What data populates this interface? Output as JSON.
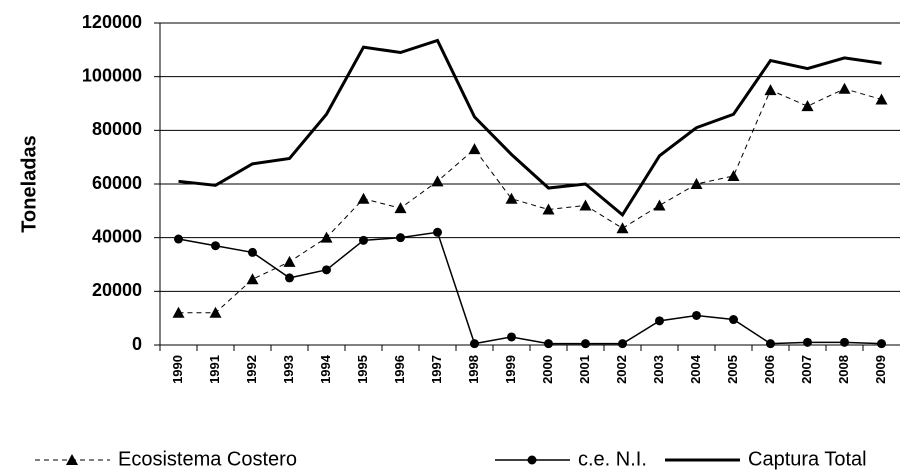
{
  "chart_data": {
    "type": "line",
    "y_label": "Toneladas",
    "categories": [
      "1990",
      "1991",
      "1992",
      "1993",
      "1994",
      "1995",
      "1996",
      "1997",
      "1998",
      "1999",
      "2000",
      "2001",
      "2002",
      "2003",
      "2004",
      "2005",
      "2006",
      "2007",
      "2008",
      "2009"
    ],
    "series": [
      {
        "name": "Ecosistema Costero",
        "color": "#000000",
        "marker": "triangle",
        "dash": true,
        "values": [
          12000,
          12000,
          24500,
          31000,
          40000,
          54500,
          51000,
          61000,
          73000,
          54500,
          50500,
          52000,
          43500,
          52000,
          60000,
          63000,
          95000,
          89000,
          95500,
          91500
        ]
      },
      {
        "name": "c.e.  N.I.",
        "color": "#000000",
        "marker": "circle",
        "dash": false,
        "values": [
          39500,
          37000,
          34500,
          25000,
          28000,
          39000,
          40000,
          42000,
          500,
          3000,
          500,
          500,
          500,
          9000,
          11000,
          9500,
          500,
          1000,
          1000,
          500
        ]
      },
      {
        "name": "Captura Total",
        "color": "#000000",
        "marker": "none",
        "dash": false,
        "values": [
          61000,
          59500,
          67500,
          69500,
          86000,
          111000,
          109000,
          113500,
          85000,
          71000,
          58500,
          60000,
          48500,
          70500,
          81000,
          86000,
          106000,
          103000,
          107000,
          105000
        ]
      }
    ],
    "ylim": [
      0,
      120000
    ],
    "yticks": [
      0,
      20000,
      40000,
      60000,
      80000,
      100000,
      120000
    ],
    "grid": true
  }
}
